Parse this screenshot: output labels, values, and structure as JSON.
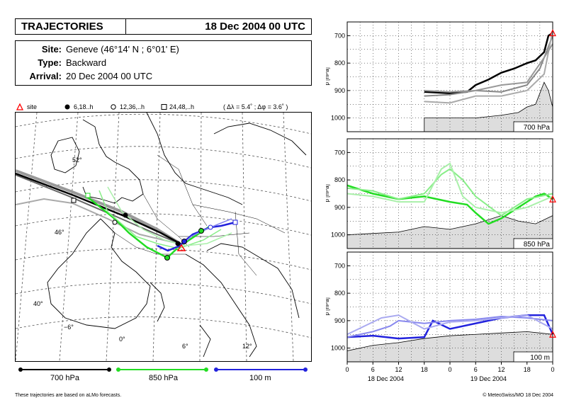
{
  "header": {
    "title": "TRAJECTORIES",
    "date": "18 Dec 2004 00 UTC"
  },
  "info": {
    "site_label": "Site:",
    "site_value": "Geneve   (46°14' N ;  6°01' E)",
    "type_label": "Type:",
    "type_value": "Backward",
    "arrival_label": "Arrival:",
    "arrival_value": "20 Dec 2004 00 UTC"
  },
  "legend": {
    "site": "site",
    "marker1": "6,18..h",
    "marker2": "12,36,..h",
    "marker3": "24,48,..h",
    "spread": "( Δλ = 5.4˚ ; Δφ = 3.6˚ )"
  },
  "map": {
    "lat_labels": [
      "52°",
      "46°",
      "40°"
    ],
    "lon_labels": [
      "−6°",
      "0°",
      "6°",
      "12°"
    ]
  },
  "levels": {
    "l700": "700 hPa",
    "l850": "850 hPa",
    "l100": "100 m"
  },
  "colors": {
    "l700": "#000000",
    "l850": "#22dd22",
    "l100": "#2222dd",
    "site": "#ff0000"
  },
  "footer": {
    "left": "These trajectories are based on aLMo forecasts.",
    "right": "© MeteoSwiss/MO 18 Dec 2004"
  },
  "chart_data": [
    {
      "type": "line",
      "title": "700 hPa",
      "ylabel": "p [hPa]",
      "ylim": [
        650,
        1050
      ],
      "yticks": [
        "700",
        "800",
        "900",
        "1000"
      ],
      "xlim": [
        0,
        48
      ],
      "xticks": [
        "0",
        "6",
        "12",
        "18",
        "0",
        "6",
        "12",
        "18",
        "0"
      ],
      "xlabels": [
        "18 Dec 2004",
        "19 Dec 2004"
      ],
      "series": [
        {
          "name": "main",
          "color": "#000000",
          "x": [
            18,
            24,
            28,
            30,
            33,
            36,
            39,
            42,
            44,
            46,
            47,
            48
          ],
          "y": [
            905,
            910,
            905,
            880,
            860,
            835,
            820,
            800,
            790,
            760,
            700,
            690
          ]
        },
        {
          "name": "member",
          "color": "#888888",
          "x": [
            18,
            24,
            30,
            36,
            42,
            45,
            48
          ],
          "y": [
            920,
            915,
            900,
            905,
            880,
            820,
            700
          ]
        },
        {
          "name": "member",
          "color": "#aaaaaa",
          "x": [
            18,
            24,
            30,
            36,
            42,
            46,
            48
          ],
          "y": [
            940,
            945,
            920,
            920,
            900,
            840,
            680
          ]
        },
        {
          "name": "member",
          "color": "#999999",
          "x": [
            18,
            24,
            30,
            36,
            42,
            46,
            48
          ],
          "y": [
            900,
            905,
            900,
            880,
            870,
            780,
            730
          ]
        },
        {
          "name": "terrain",
          "color": "#000000",
          "x": [
            18,
            24,
            30,
            36,
            40,
            42,
            44,
            46,
            47,
            48
          ],
          "y": [
            1000,
            1000,
            1000,
            990,
            980,
            960,
            950,
            870,
            900,
            960
          ]
        }
      ]
    },
    {
      "type": "line",
      "title": "850 hPa",
      "ylabel": "p [hPa]",
      "ylim": [
        650,
        1050
      ],
      "yticks": [
        "700",
        "800",
        "900",
        "1000"
      ],
      "xlim": [
        0,
        48
      ],
      "xticks": [
        "0",
        "6",
        "12",
        "18",
        "0",
        "6",
        "12",
        "18",
        "0"
      ],
      "xlabels": [
        "18 Dec 2004",
        "19 Dec 2004"
      ],
      "series": [
        {
          "name": "main",
          "color": "#22dd22",
          "x": [
            0,
            6,
            12,
            18,
            24,
            28,
            30,
            33,
            36,
            42,
            44,
            46,
            48
          ],
          "y": [
            820,
            850,
            870,
            860,
            880,
            890,
            920,
            960,
            940,
            880,
            860,
            850,
            870
          ]
        },
        {
          "name": "member",
          "color": "#88ee88",
          "x": [
            0,
            6,
            12,
            18,
            22,
            24,
            27,
            30,
            36,
            42,
            48
          ],
          "y": [
            830,
            840,
            870,
            850,
            780,
            760,
            800,
            860,
            930,
            870,
            850
          ]
        },
        {
          "name": "member",
          "color": "#aaf0aa",
          "x": [
            0,
            6,
            12,
            18,
            22,
            24,
            27,
            30,
            36,
            42,
            48
          ],
          "y": [
            850,
            860,
            880,
            880,
            760,
            740,
            860,
            900,
            920,
            900,
            860
          ]
        },
        {
          "name": "terrain",
          "color": "#000000",
          "x": [
            0,
            6,
            12,
            18,
            24,
            30,
            36,
            40,
            44,
            48
          ],
          "y": [
            1000,
            995,
            990,
            970,
            980,
            960,
            930,
            950,
            960,
            930
          ]
        }
      ]
    },
    {
      "type": "line",
      "title": "100 m",
      "ylabel": "p [hPa]",
      "ylim": [
        650,
        1050
      ],
      "yticks": [
        "700",
        "800",
        "900",
        "1000"
      ],
      "xlim": [
        0,
        48
      ],
      "xticks": [
        "0",
        "6",
        "12",
        "18",
        "0",
        "6",
        "12",
        "18",
        "0"
      ],
      "xlabels": [
        "18 Dec 2004",
        "19 Dec 2004"
      ],
      "series": [
        {
          "name": "main",
          "color": "#2222dd",
          "x": [
            0,
            6,
            12,
            18,
            20,
            24,
            30,
            36,
            42,
            46,
            48
          ],
          "y": [
            960,
            955,
            965,
            960,
            900,
            930,
            910,
            890,
            880,
            880,
            950
          ]
        },
        {
          "name": "member",
          "color": "#8888ee",
          "x": [
            0,
            6,
            10,
            12,
            18,
            24,
            30,
            36,
            42,
            48
          ],
          "y": [
            960,
            940,
            920,
            900,
            910,
            900,
            895,
            885,
            890,
            900
          ]
        },
        {
          "name": "member",
          "color": "#aaaaf0",
          "x": [
            0,
            4,
            8,
            12,
            18,
            24,
            30,
            36,
            42,
            48
          ],
          "y": [
            950,
            920,
            890,
            880,
            930,
            905,
            900,
            890,
            880,
            930
          ]
        },
        {
          "name": "terrain",
          "color": "#000000",
          "x": [
            0,
            6,
            12,
            18,
            24,
            30,
            36,
            42,
            48
          ],
          "y": [
            1010,
            990,
            980,
            965,
            955,
            950,
            945,
            940,
            950
          ]
        }
      ]
    }
  ]
}
